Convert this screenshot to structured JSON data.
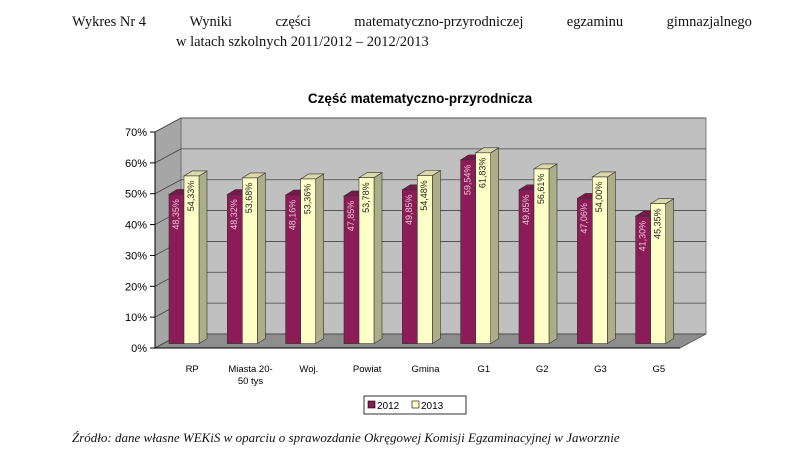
{
  "caption": {
    "label": "Wykres Nr 4",
    "words": [
      "Wyniki",
      "części",
      "matematyczno-przyrodniczej",
      "egzaminu",
      "gimnazjalnego"
    ],
    "line2": "w latach szkolnych 2011/2012 – 2012/2013"
  },
  "source": "Źródło: dane własne WEKiS w oparciu o sprawozdanie Okręgowej Komisji Egzaminacyjnej w Jaworznie",
  "colors": {
    "s2012": "#8c1c57",
    "s2013": "#ffffc8",
    "wall": "#c0c0c0",
    "floor": "#8e8e8e"
  },
  "chart_data": {
    "type": "bar",
    "title": "Część matematyczno-przyrodnicza",
    "categories": [
      "RP",
      "Miasta 20-50 tys",
      "Woj.",
      "Powiat",
      "Gmina",
      "G1",
      "G2",
      "G3",
      "G5"
    ],
    "series": [
      {
        "name": "2012",
        "values": [
          48.35,
          48.32,
          48.16,
          47.85,
          49.85,
          59.54,
          49.85,
          47.06,
          41.3
        ],
        "labels": [
          "48,35%",
          "48,32%",
          "48,16%",
          "47,85%",
          "49,85%",
          "59,54%",
          "49,85%",
          "47,06%",
          "41,30%"
        ]
      },
      {
        "name": "2013",
        "values": [
          54.33,
          53.68,
          53.36,
          53.78,
          54.48,
          61.83,
          56.61,
          54.0,
          45.35
        ],
        "labels": [
          "54,33%",
          "53,68%",
          "53,36%",
          "53,78%",
          "54,48%",
          "61,83%",
          "56,61%",
          "54,00%",
          "45,35%"
        ]
      }
    ],
    "yticks": [
      "0%",
      "10%",
      "20%",
      "30%",
      "40%",
      "50%",
      "60%",
      "70%"
    ],
    "ylim": [
      0,
      70
    ],
    "legend": "bottom"
  }
}
